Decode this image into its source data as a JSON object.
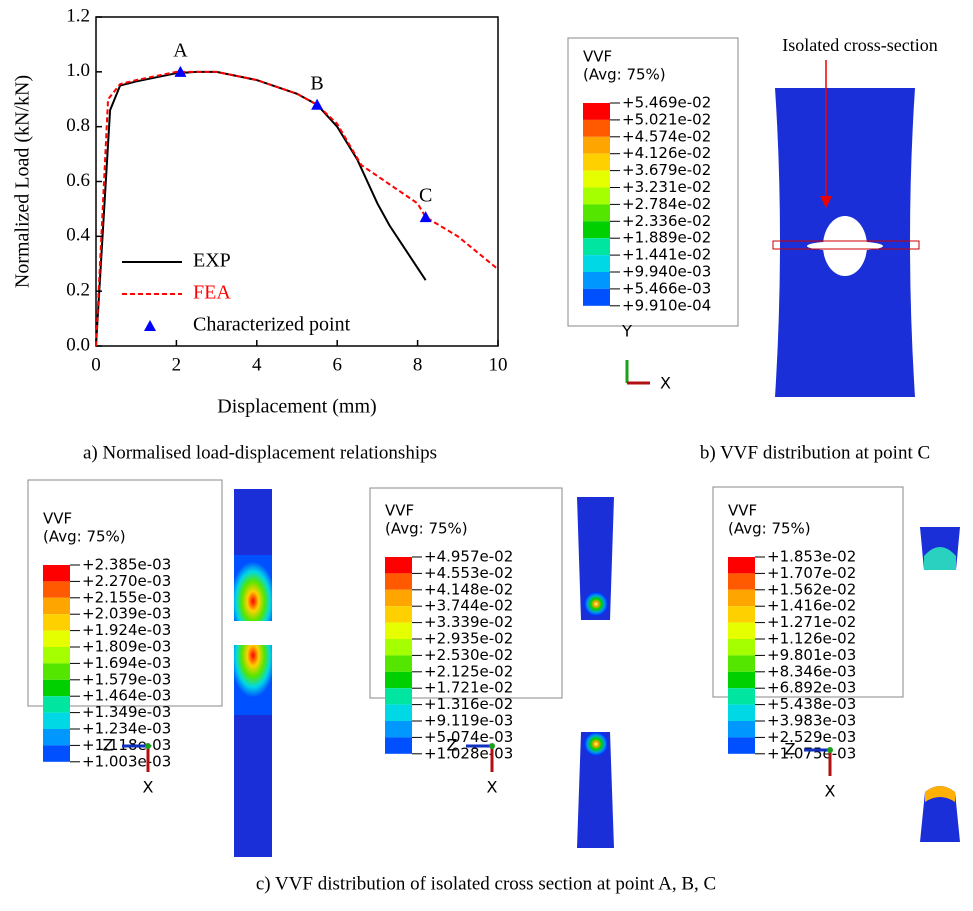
{
  "chart_data": {
    "type": "line",
    "x_label": "Displacement (mm)",
    "y_label": "Normalized Load (kN/kN)",
    "xlim": [
      0,
      10
    ],
    "ylim": [
      0,
      1.2
    ],
    "xticks": [
      0,
      2,
      4,
      6,
      8,
      10
    ],
    "yticks": [
      {
        "value": 0,
        "label": "0.0"
      },
      0.2,
      0.4,
      0.6,
      0.8,
      {
        "value": 1,
        "label": "1.0"
      },
      1.2
    ],
    "series": [
      {
        "name": "EXP",
        "color": "#000000",
        "style": "solid",
        "x": [
          0,
          0.35,
          0.6,
          1,
          1.5,
          2,
          2.5,
          3,
          4,
          5,
          5.5,
          6,
          6.5,
          7,
          7.3,
          8.2
        ],
        "values": [
          0,
          0.86,
          0.95,
          0.965,
          0.98,
          0.995,
          1.0,
          1.0,
          0.97,
          0.92,
          0.88,
          0.8,
          0.68,
          0.52,
          0.44,
          0.24
        ]
      },
      {
        "name": "FEA",
        "color": "#ff0000",
        "style": "dashed",
        "x": [
          0,
          0.3,
          0.6,
          1,
          2,
          3,
          4,
          5,
          5.5,
          6,
          6.6,
          7,
          8,
          8.2,
          9,
          10
        ],
        "values": [
          0,
          0.9,
          0.955,
          0.97,
          1.0,
          1.0,
          0.97,
          0.92,
          0.88,
          0.81,
          0.66,
          0.62,
          0.52,
          0.47,
          0.4,
          0.28
        ]
      },
      {
        "name": "Characterized point",
        "color": "#0000ff",
        "style": "marker",
        "x": [
          2.1,
          5.5,
          8.2
        ],
        "values": [
          1.0,
          0.88,
          0.47
        ],
        "labels": [
          "A",
          "B",
          "C"
        ]
      }
    ]
  },
  "captions": [
    "a)   Normalised load-displacement relationships",
    "b)   VVF distribution at point C",
    "c)   VVF distribution of isolated cross section at point A, B, C"
  ],
  "annotation": "Isolated cross-section",
  "colorbars": [
    {
      "title": "VVF",
      "subtitle": "(Avg: 75%)",
      "labels": [
        "+5.469e-02",
        "+5.021e-02",
        "+4.574e-02",
        "+4.126e-02",
        "+3.679e-02",
        "+3.231e-02",
        "+2.784e-02",
        "+2.336e-02",
        "+1.889e-02",
        "+1.441e-02",
        "+9.940e-03",
        "+5.466e-03",
        "+9.910e-04"
      ]
    },
    {
      "title": "VVF",
      "subtitle": "(Avg: 75%)",
      "labels": [
        "+2.385e-03",
        "+2.270e-03",
        "+2.155e-03",
        "+2.039e-03",
        "+1.924e-03",
        "+1.809e-03",
        "+1.694e-03",
        "+1.579e-03",
        "+1.464e-03",
        "+1.349e-03",
        "+1.234e-03",
        "+1.118e-03",
        "+1.003e-03"
      ]
    },
    {
      "title": "VVF",
      "subtitle": "(Avg: 75%)",
      "labels": [
        "+4.957e-02",
        "+4.553e-02",
        "+4.148e-02",
        "+3.744e-02",
        "+3.339e-02",
        "+2.935e-02",
        "+2.530e-02",
        "+2.125e-02",
        "+1.721e-02",
        "+1.316e-02",
        "+9.119e-03",
        "+5.074e-03",
        "+1.028e-03"
      ]
    },
    {
      "title": "VVF",
      "subtitle": "(Avg: 75%)",
      "labels": [
        "+1.853e-02",
        "+1.707e-02",
        "+1.562e-02",
        "+1.416e-02",
        "+1.271e-02",
        "+1.126e-02",
        "+9.801e-03",
        "+8.346e-03",
        "+6.892e-03",
        "+5.438e-03",
        "+3.983e-03",
        "+2.529e-03",
        "+1.075e-03"
      ]
    }
  ],
  "triads": [
    [
      "Y",
      "X"
    ],
    [
      "Z",
      "X"
    ],
    [
      "Z",
      "X"
    ],
    [
      "Z",
      "X"
    ]
  ]
}
